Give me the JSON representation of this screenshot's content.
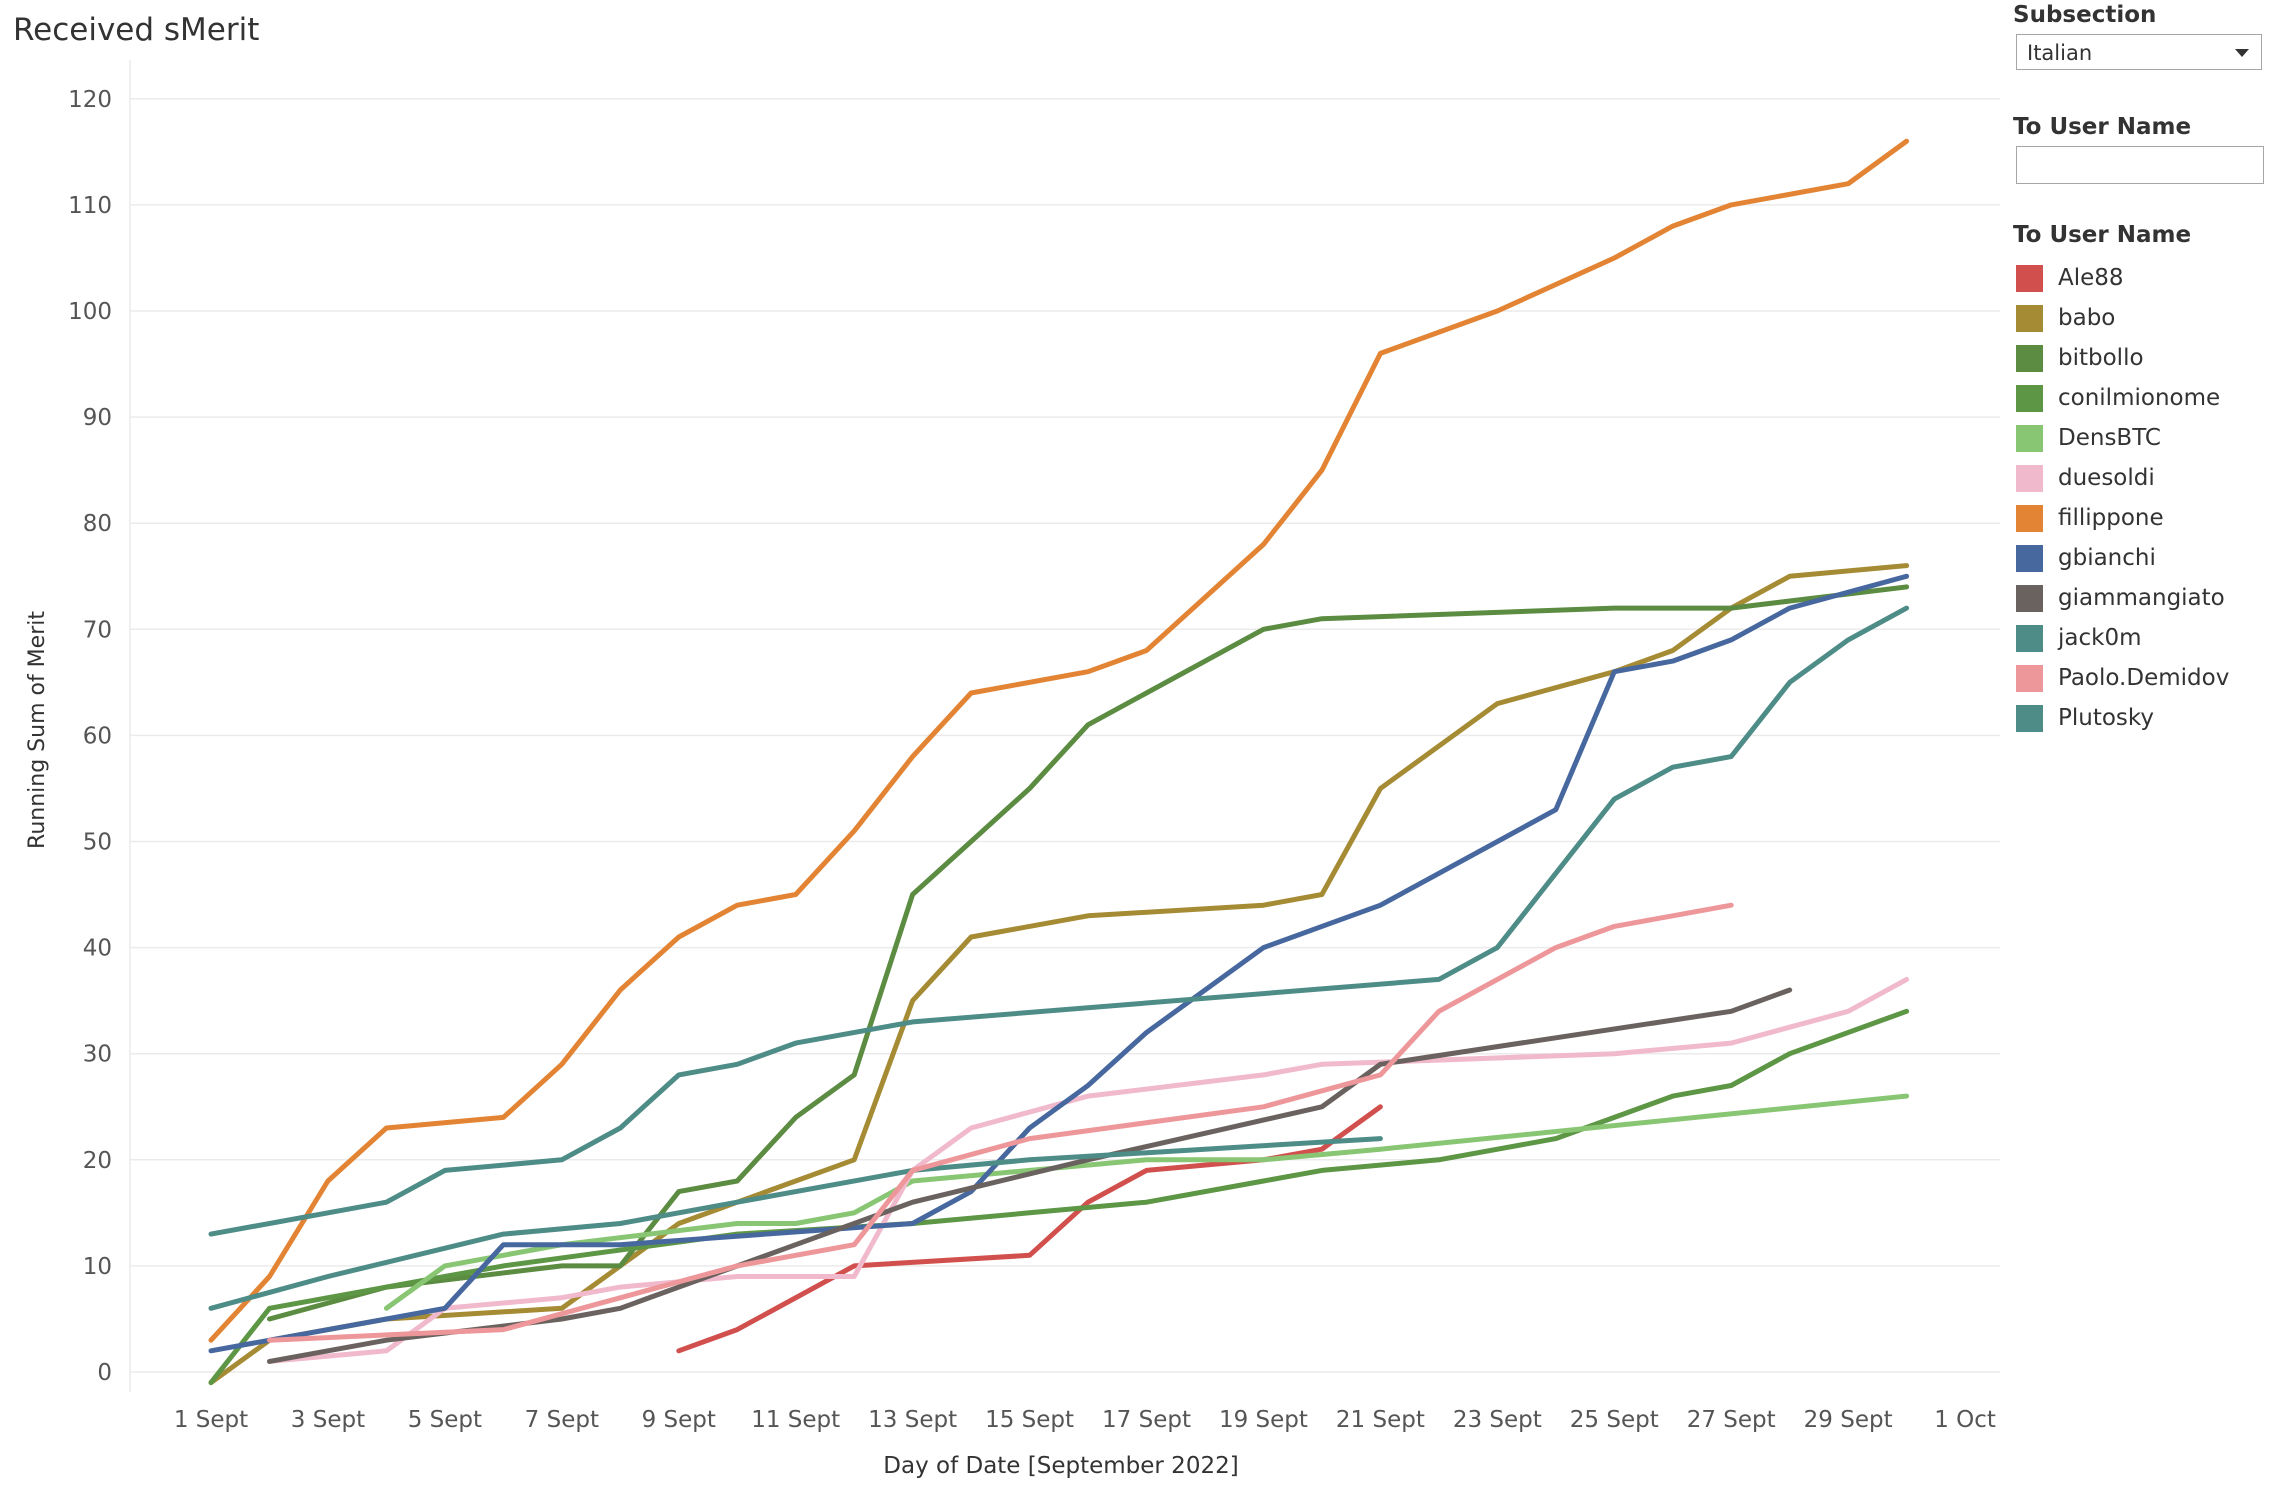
{
  "chart_data": {
    "type": "line",
    "title": "Received sMerit",
    "xlabel": "Day of Date [September 2022]",
    "ylabel": "Running Sum of Merit",
    "x_ticks": [
      "1 Sept",
      "3 Sept",
      "5 Sept",
      "7 Sept",
      "9 Sept",
      "11 Sept",
      "13 Sept",
      "15 Sept",
      "17 Sept",
      "19 Sept",
      "21 Sept",
      "23 Sept",
      "25 Sept",
      "27 Sept",
      "29 Sept",
      "1 Oct"
    ],
    "y_ticks": [
      0,
      10,
      20,
      30,
      40,
      50,
      60,
      70,
      80,
      90,
      100,
      110,
      120
    ],
    "xlim": [
      1,
      31
    ],
    "ylim": [
      0,
      120
    ],
    "grid": "horizontal",
    "legend_position": "right",
    "series": [
      {
        "name": "Ale88",
        "color": "#d1504d",
        "points": [
          [
            9,
            2
          ],
          [
            10,
            4
          ],
          [
            12,
            10
          ],
          [
            15,
            11
          ],
          [
            16,
            16
          ],
          [
            17,
            19
          ],
          [
            19,
            20
          ],
          [
            20,
            21
          ],
          [
            21,
            25
          ]
        ]
      },
      {
        "name": "babo",
        "color": "#a68b35",
        "points": [
          [
            1,
            -1
          ],
          [
            2,
            3
          ],
          [
            4,
            5
          ],
          [
            7,
            6
          ],
          [
            8,
            10
          ],
          [
            9,
            14
          ],
          [
            10,
            16
          ],
          [
            12,
            20
          ],
          [
            13,
            35
          ],
          [
            14,
            41
          ],
          [
            16,
            43
          ],
          [
            19,
            44
          ],
          [
            20,
            45
          ],
          [
            21,
            55
          ],
          [
            23,
            63
          ],
          [
            25,
            66
          ],
          [
            26,
            68
          ],
          [
            27,
            72
          ],
          [
            28,
            75
          ],
          [
            30,
            76
          ]
        ]
      },
      {
        "name": "bitbollo",
        "color": "#5b8c42",
        "points": [
          [
            2,
            5
          ],
          [
            4,
            8
          ],
          [
            7,
            10
          ],
          [
            8,
            10
          ],
          [
            9,
            17
          ],
          [
            10,
            18
          ],
          [
            11,
            24
          ],
          [
            12,
            28
          ],
          [
            13,
            45
          ],
          [
            14,
            50
          ],
          [
            15,
            55
          ],
          [
            16,
            61
          ],
          [
            19,
            70
          ],
          [
            20,
            71
          ],
          [
            25,
            72
          ],
          [
            27,
            72
          ],
          [
            30,
            74
          ]
        ]
      },
      {
        "name": "conilmionome",
        "color": "#5d9645",
        "points": [
          [
            1,
            -1
          ],
          [
            2,
            6
          ],
          [
            4,
            8
          ],
          [
            5,
            9
          ],
          [
            6,
            10
          ],
          [
            10,
            13
          ],
          [
            13,
            14
          ],
          [
            15,
            15
          ],
          [
            17,
            16
          ],
          [
            19,
            18
          ],
          [
            20,
            19
          ],
          [
            22,
            20
          ],
          [
            24,
            22
          ],
          [
            25,
            24
          ],
          [
            26,
            26
          ],
          [
            27,
            27
          ],
          [
            28,
            30
          ],
          [
            30,
            34
          ]
        ]
      },
      {
        "name": "DensBTC",
        "color": "#88c674",
        "points": [
          [
            4,
            6
          ],
          [
            5,
            10
          ],
          [
            6,
            11
          ],
          [
            7,
            12
          ],
          [
            10,
            14
          ],
          [
            11,
            14
          ],
          [
            12,
            15
          ],
          [
            13,
            18
          ],
          [
            17,
            20
          ],
          [
            19,
            20
          ],
          [
            21,
            21
          ],
          [
            30,
            26
          ]
        ]
      },
      {
        "name": "duesoldi",
        "color": "#f1b9cc",
        "points": [
          [
            2,
            1
          ],
          [
            4,
            2
          ],
          [
            5,
            6
          ],
          [
            7,
            7
          ],
          [
            8,
            8
          ],
          [
            10,
            9
          ],
          [
            12,
            9
          ],
          [
            13,
            19
          ],
          [
            14,
            23
          ],
          [
            16,
            26
          ],
          [
            19,
            28
          ],
          [
            20,
            29
          ],
          [
            25,
            30
          ],
          [
            27,
            31
          ],
          [
            29,
            34
          ],
          [
            30,
            37
          ]
        ]
      },
      {
        "name": "fillippone",
        "color": "#e38434",
        "points": [
          [
            1,
            3
          ],
          [
            2,
            9
          ],
          [
            3,
            18
          ],
          [
            4,
            23
          ],
          [
            6,
            24
          ],
          [
            7,
            29
          ],
          [
            8,
            36
          ],
          [
            9,
            41
          ],
          [
            10,
            44
          ],
          [
            11,
            45
          ],
          [
            12,
            51
          ],
          [
            13,
            58
          ],
          [
            14,
            64
          ],
          [
            16,
            66
          ],
          [
            17,
            68
          ],
          [
            19,
            78
          ],
          [
            20,
            85
          ],
          [
            21,
            96
          ],
          [
            23,
            100
          ],
          [
            25,
            105
          ],
          [
            26,
            108
          ],
          [
            27,
            110
          ],
          [
            29,
            112
          ],
          [
            30,
            116
          ]
        ]
      },
      {
        "name": "gbianchi",
        "color": "#47689f",
        "points": [
          [
            1,
            2
          ],
          [
            4,
            5
          ],
          [
            5,
            6
          ],
          [
            6,
            12
          ],
          [
            7,
            12
          ],
          [
            8,
            12
          ],
          [
            13,
            14
          ],
          [
            14,
            17
          ],
          [
            15,
            23
          ],
          [
            16,
            27
          ],
          [
            17,
            32
          ],
          [
            19,
            40
          ],
          [
            21,
            44
          ],
          [
            24,
            53
          ],
          [
            25,
            66
          ],
          [
            26,
            67
          ],
          [
            27,
            69
          ],
          [
            28,
            72
          ],
          [
            30,
            75
          ]
        ]
      },
      {
        "name": "giammangiato",
        "color": "#6a625e",
        "points": [
          [
            2,
            1
          ],
          [
            4,
            3
          ],
          [
            7,
            5
          ],
          [
            8,
            6
          ],
          [
            11,
            12
          ],
          [
            13,
            16
          ],
          [
            16,
            20
          ],
          [
            20,
            25
          ],
          [
            21,
            29
          ],
          [
            27,
            34
          ],
          [
            28,
            36
          ]
        ]
      },
      {
        "name": "jack0m",
        "color": "#4e8c87",
        "points": [
          [
            1,
            6
          ],
          [
            3,
            9
          ],
          [
            6,
            13
          ],
          [
            8,
            14
          ],
          [
            10,
            16
          ],
          [
            13,
            19
          ],
          [
            15,
            20
          ],
          [
            21,
            22
          ]
        ]
      },
      {
        "name": "Paolo.Demidov",
        "color": "#ee979a",
        "points": [
          [
            2,
            3
          ],
          [
            6,
            4
          ],
          [
            10,
            10
          ],
          [
            12,
            12
          ],
          [
            13,
            19
          ],
          [
            15,
            22
          ],
          [
            19,
            25
          ],
          [
            21,
            28
          ],
          [
            22,
            34
          ],
          [
            24,
            40
          ],
          [
            25,
            42
          ],
          [
            26,
            43
          ],
          [
            27,
            44
          ]
        ]
      },
      {
        "name": "Plutosky",
        "color": "#4e8c87",
        "points": [
          [
            1,
            13
          ],
          [
            4,
            16
          ],
          [
            5,
            19
          ],
          [
            7,
            20
          ],
          [
            8,
            23
          ],
          [
            9,
            28
          ],
          [
            10,
            29
          ],
          [
            11,
            31
          ],
          [
            13,
            33
          ],
          [
            22,
            37
          ],
          [
            23,
            40
          ],
          [
            24,
            47
          ],
          [
            25,
            54
          ],
          [
            26,
            57
          ],
          [
            27,
            58
          ],
          [
            28,
            65
          ],
          [
            29,
            69
          ],
          [
            30,
            72
          ]
        ]
      }
    ]
  },
  "filters": {
    "subsection_label": "Subsection",
    "subsection_value": "Italian",
    "user_search_label": "To User Name",
    "user_search_value": "",
    "legend_title": "To User Name"
  }
}
